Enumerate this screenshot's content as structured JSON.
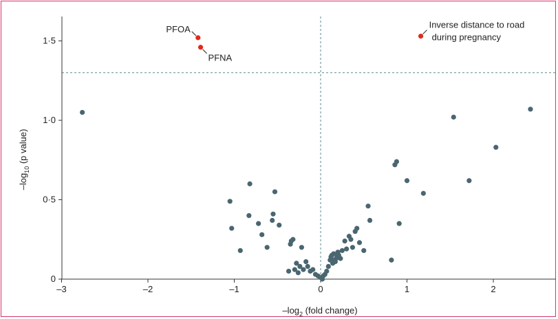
{
  "chart_data": {
    "type": "scatter",
    "xlabel": "–log",
    "xlabel_sub": "2",
    "xlabel_rest": " (fold change)",
    "ylabel": "–log",
    "ylabel_sub": "10",
    "ylabel_rest": " (p value)",
    "xlim": [
      -3,
      2.7
    ],
    "ylim": [
      0,
      1.65
    ],
    "x_ticks": [
      -3,
      -2,
      -1,
      0,
      1,
      2
    ],
    "x_tick_labels": [
      "–3",
      "–2",
      "–1",
      "0",
      "1",
      "2"
    ],
    "y_ticks": [
      0,
      0.5,
      1.0,
      1.5
    ],
    "y_tick_labels": [
      "0",
      "0·5",
      "1·0",
      "1·5"
    ],
    "threshold_y": 1.3,
    "threshold_x": 0,
    "colors": {
      "normal": "#4a6670",
      "significant": "#e02a1d",
      "frame": "#d6336c",
      "guide": "#5a8a8a"
    },
    "highlighted": [
      {
        "label": "PFOA",
        "x": -1.42,
        "y": 1.52
      },
      {
        "label": "PFNA",
        "x": -1.39,
        "y": 1.46
      },
      {
        "label": "Inverse distance to road",
        "label2": "during pregnancy",
        "x": 1.16,
        "y": 1.53
      }
    ],
    "points": [
      [
        -2.76,
        1.05
      ],
      [
        -1.05,
        0.49
      ],
      [
        -1.03,
        0.32
      ],
      [
        -0.93,
        0.18
      ],
      [
        -0.82,
        0.6
      ],
      [
        -0.83,
        0.4
      ],
      [
        -0.72,
        0.35
      ],
      [
        -0.68,
        0.28
      ],
      [
        -0.62,
        0.2
      ],
      [
        -0.56,
        0.37
      ],
      [
        -0.55,
        0.41
      ],
      [
        -0.53,
        0.55
      ],
      [
        -0.48,
        0.34
      ],
      [
        -0.37,
        0.05
      ],
      [
        -0.35,
        0.22
      ],
      [
        -0.34,
        0.24
      ],
      [
        -0.32,
        0.25
      ],
      [
        -0.3,
        0.06
      ],
      [
        -0.28,
        0.1
      ],
      [
        -0.26,
        0.04
      ],
      [
        -0.24,
        0.08
      ],
      [
        -0.22,
        0.2
      ],
      [
        -0.2,
        0.06
      ],
      [
        -0.17,
        0.11
      ],
      [
        -0.15,
        0.08
      ],
      [
        -0.12,
        0.05
      ],
      [
        -0.09,
        0.06
      ],
      [
        -0.06,
        0.03
      ],
      [
        -0.03,
        0.02
      ],
      [
        0.0,
        0.01
      ],
      [
        0.02,
        0.0
      ],
      [
        0.03,
        0.02
      ],
      [
        0.05,
        0.03
      ],
      [
        0.07,
        0.05
      ],
      [
        0.09,
        0.08
      ],
      [
        0.11,
        0.12
      ],
      [
        0.12,
        0.14
      ],
      [
        0.13,
        0.15
      ],
      [
        0.14,
        0.1
      ],
      [
        0.15,
        0.16
      ],
      [
        0.16,
        0.12
      ],
      [
        0.17,
        0.11
      ],
      [
        0.18,
        0.13
      ],
      [
        0.19,
        0.15
      ],
      [
        0.2,
        0.17
      ],
      [
        0.21,
        0.15
      ],
      [
        0.23,
        0.13
      ],
      [
        0.25,
        0.18
      ],
      [
        0.28,
        0.24
      ],
      [
        0.3,
        0.19
      ],
      [
        0.33,
        0.27
      ],
      [
        0.35,
        0.25
      ],
      [
        0.37,
        0.2
      ],
      [
        0.4,
        0.3
      ],
      [
        0.42,
        0.32
      ],
      [
        0.45,
        0.23
      ],
      [
        0.5,
        0.18
      ],
      [
        0.55,
        0.46
      ],
      [
        0.57,
        0.37
      ],
      [
        0.82,
        0.12
      ],
      [
        0.86,
        0.72
      ],
      [
        0.88,
        0.74
      ],
      [
        0.91,
        0.35
      ],
      [
        1.0,
        0.62
      ],
      [
        1.19,
        0.54
      ],
      [
        1.54,
        1.02
      ],
      [
        1.72,
        0.62
      ],
      [
        2.03,
        0.83
      ],
      [
        2.43,
        1.07
      ]
    ]
  }
}
